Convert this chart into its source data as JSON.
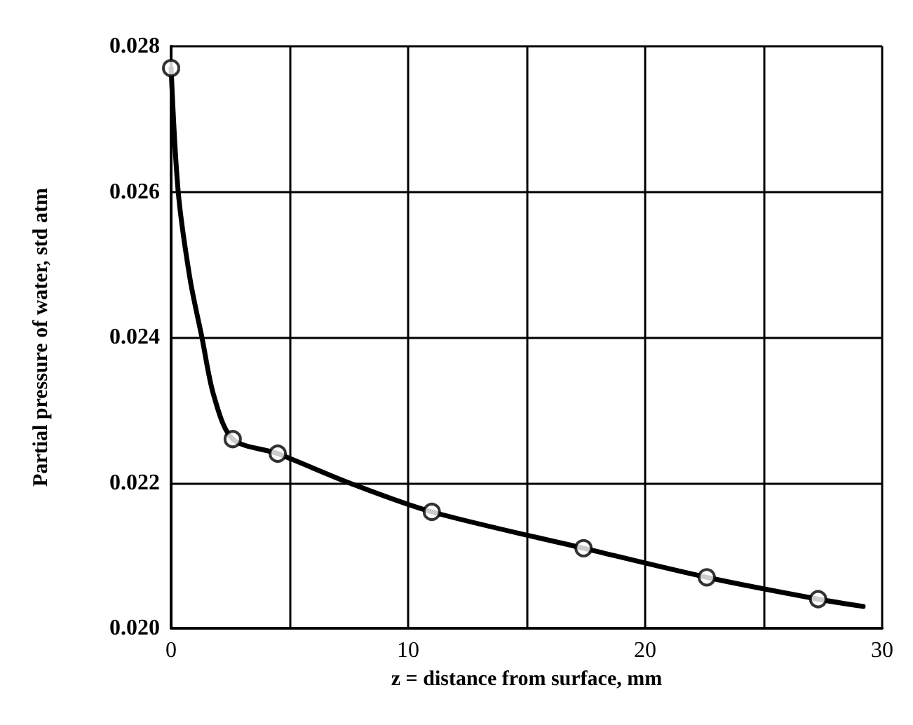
{
  "chart_data": {
    "type": "scatter",
    "xlabel": "z = distance from surface, mm",
    "ylabel": "Partial pressure of water, std atm",
    "xlim": [
      0,
      30
    ],
    "xticks": [
      0,
      {
        "value": 5,
        "label": null
      },
      10,
      {
        "value": 15,
        "label": null
      },
      20,
      {
        "value": 25,
        "label": null
      },
      30
    ],
    "ylim": [
      0.02,
      0.028
    ],
    "yticks": [
      {
        "value": 0.02,
        "label": "0.020"
      },
      {
        "value": 0.022,
        "label": "0.022"
      },
      {
        "value": 0.024,
        "label": "0.024"
      },
      {
        "value": 0.026,
        "label": "0.026"
      },
      {
        "value": 0.028,
        "label": "0.028"
      }
    ],
    "grid": true,
    "series": [
      {
        "type": "line",
        "marker": "none",
        "line_style": "solid",
        "color": "#000000",
        "x": [
          0,
          0.3,
          0.8,
          1.3,
          1.8,
          2.6,
          4.5,
          7.5,
          11,
          17.4,
          22.6,
          27.3,
          29.2
        ],
        "values": [
          0.0277,
          0.026,
          0.0248,
          0.024,
          0.0232,
          0.0226,
          0.0224,
          0.022,
          0.0216,
          0.0211,
          0.0207,
          0.0204,
          0.0203
        ]
      },
      {
        "marker": "circle",
        "color": "#000000",
        "x": [
          0,
          2.6,
          4.5,
          11,
          17.4,
          22.6,
          27.3
        ],
        "values": [
          0.0277,
          0.0226,
          0.0224,
          0.0216,
          0.0211,
          0.0207,
          0.0204
        ]
      }
    ]
  }
}
